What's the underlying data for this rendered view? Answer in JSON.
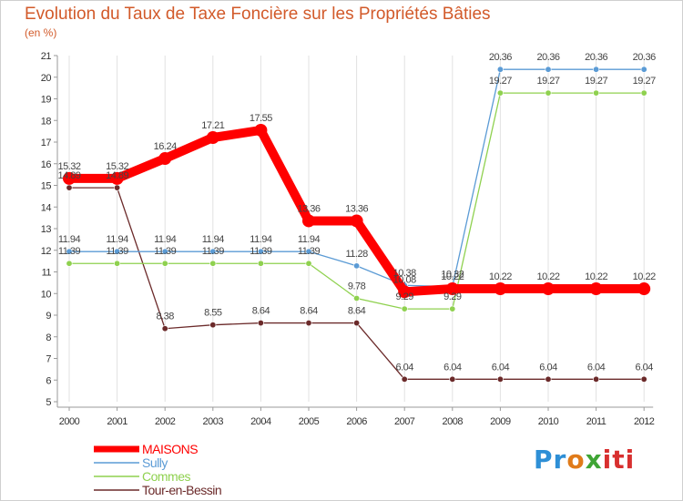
{
  "title": "Evolution du Taux de Taxe Foncière sur les Propriétés Bâties",
  "unit": "(en %)",
  "logo": {
    "p1": "Pr",
    "p2": "o",
    "p3": "x",
    "p4": "iti"
  },
  "colors": {
    "MAISONS": "#ff0000",
    "Sully": "#5b9bd5",
    "Commes": "#8fd14f",
    "Tour-en-Bessin": "#6b2a2a"
  },
  "chart_data": {
    "type": "line",
    "title": "Evolution du Taux de Taxe Foncière sur les Propriétés Bâties",
    "ylabel": "(en %)",
    "xlabel": "",
    "ylim": [
      5,
      21
    ],
    "yticks": [
      "5",
      "6",
      "7",
      "8",
      "9",
      "10",
      "11",
      "12",
      "13",
      "14",
      "15",
      "16",
      "17",
      "18",
      "19",
      "20",
      "21"
    ],
    "x": [
      "2000",
      "2001",
      "2002",
      "2003",
      "2004",
      "2005",
      "2006",
      "2007",
      "2008",
      "2009",
      "2010",
      "2011",
      "2012"
    ],
    "grid": "vertical",
    "legend": "bottom-left",
    "series": [
      {
        "name": "MAISONS",
        "values": [
          15.32,
          15.32,
          16.24,
          17.21,
          17.55,
          13.36,
          13.36,
          10.08,
          10.22,
          10.22,
          10.22,
          10.22,
          10.22
        ],
        "labels": [
          "15.32",
          "15.32",
          "16.24",
          "17.21",
          "17.55",
          "13.36",
          "13.36",
          "10.08",
          "10.22",
          "10.22",
          "10.22",
          "10.22",
          "10.22"
        ]
      },
      {
        "name": "Sully",
        "values": [
          11.94,
          11.94,
          11.94,
          11.94,
          11.94,
          11.94,
          11.28,
          10.38,
          10.32,
          20.36,
          20.36,
          20.36,
          20.36
        ],
        "labels": [
          "11.94",
          "11.94",
          "11.94",
          "11.94",
          "11.94",
          "11.94",
          "11.28",
          "10.38",
          "10.32",
          "20.36",
          "20.36",
          "20.36",
          "20.36"
        ]
      },
      {
        "name": "Commes",
        "values": [
          11.39,
          11.39,
          11.39,
          11.39,
          11.39,
          11.39,
          9.78,
          9.29,
          9.29,
          19.27,
          19.27,
          19.27,
          19.27
        ],
        "labels": [
          "11.39",
          "11.39",
          "11.39",
          "11.39",
          "11.39",
          "11.39",
          "9.78",
          "9.29",
          "9.29",
          "19.27",
          "19.27",
          "19.27",
          "19.27"
        ]
      },
      {
        "name": "Tour-en-Bessin",
        "values": [
          14.89,
          14.89,
          8.38,
          8.55,
          8.64,
          8.64,
          8.64,
          6.04,
          6.04,
          6.04,
          6.04,
          6.04,
          6.04
        ],
        "labels": [
          "14.89",
          "14.89",
          "8.38",
          "8.55",
          "8.64",
          "8.64",
          "8.64",
          "6.04",
          "6.04",
          "6.04",
          "6.04",
          "6.04",
          "6.04"
        ]
      }
    ]
  }
}
